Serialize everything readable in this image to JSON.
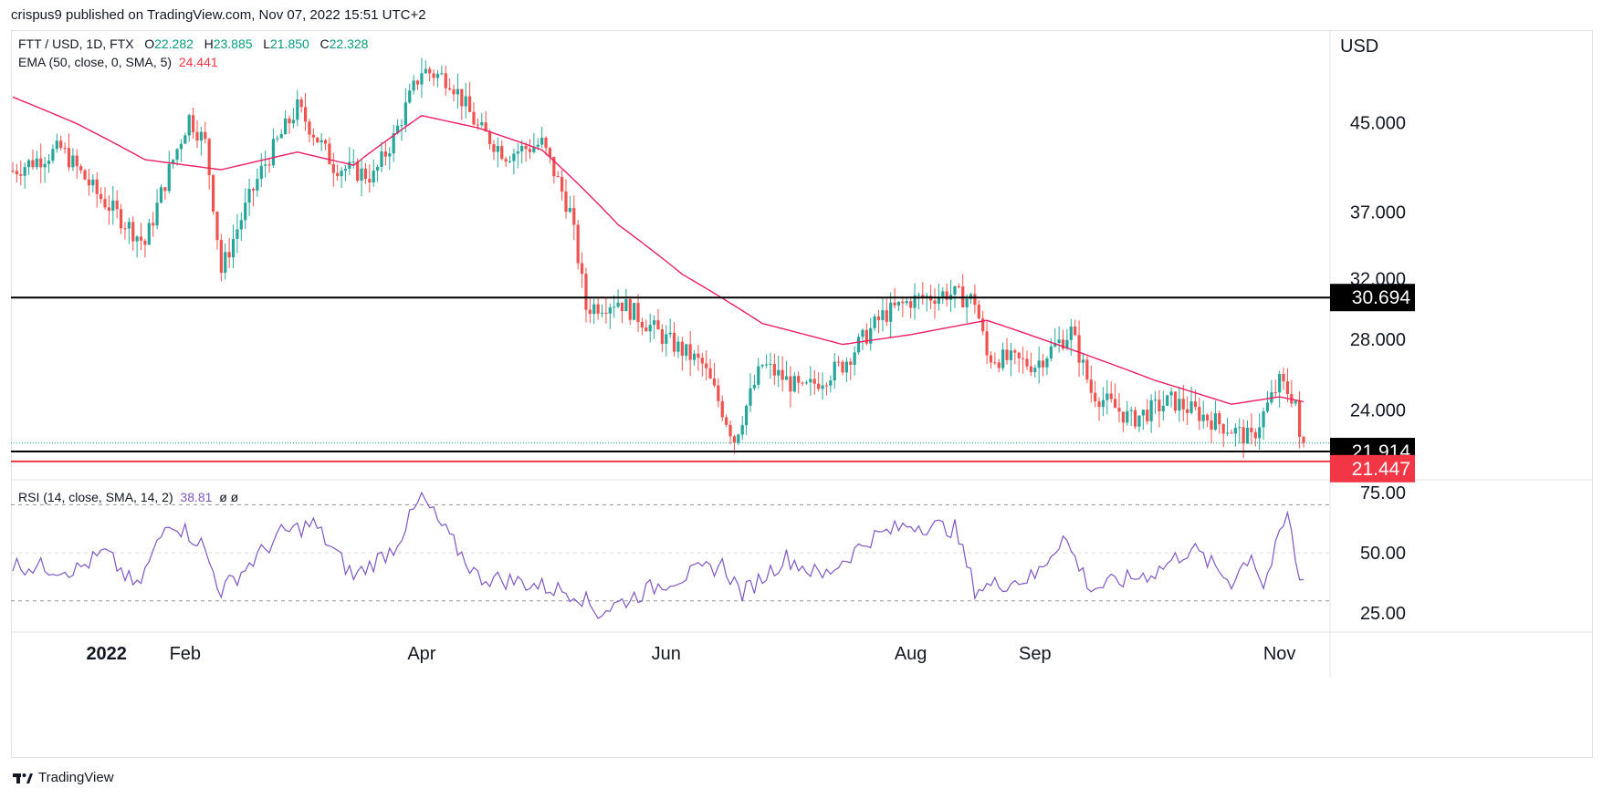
{
  "caption": "crispus9 published on TradingView.com, Nov 07, 2022 15:51 UTC+2",
  "legend": {
    "symbol": "FTT / USD, 1D, FTX",
    "o_label": "O",
    "o_value": "22.282",
    "h_label": "H",
    "h_value": "23.885",
    "l_label": "L",
    "l_value": "21.850",
    "c_label": "C",
    "c_value": "22.328",
    "ema_label": "EMA (50, close, 0, SMA, 5)",
    "ema_value": "24.441",
    "rsi_label": "RSI (14, close, SMA, 14, 2)",
    "rsi_value": "38.81",
    "rsi_extra": "ø ø"
  },
  "footer": {
    "brand": "TradingView",
    "icon": "tradingview-logo-icon"
  },
  "colors": {
    "up": "#26a69a",
    "down": "#ef5350",
    "ema": "#e91e63",
    "rsi": "#7e57c2",
    "level": "#000000",
    "support_red": "#f23645"
  },
  "chart_data": [
    {
      "type": "candlestick",
      "currency": "USD",
      "y_scale": "log",
      "price_ticks": [
        "45.000",
        "37.000",
        "32.000",
        "28.000",
        "24.000"
      ],
      "price_tick_values": [
        45,
        37,
        32,
        28,
        24
      ],
      "ylim": [
        20.6,
        55
      ],
      "x_tick_labels": [
        "2022",
        "Feb",
        "Apr",
        "Jun",
        "Aug",
        "Sep",
        "Nov"
      ],
      "x_tick_dates": [
        "2022-01-01",
        "2022-02-01",
        "2022-04-01",
        "2022-06-01",
        "2022-08-01",
        "2022-09-01",
        "2022-11-01"
      ],
      "date_range": [
        "2021-12-20",
        "2022-11-07"
      ],
      "horizontal_levels": [
        {
          "value": 30.694,
          "label": "30.694",
          "color": "#000000"
        },
        {
          "value": 21.914,
          "label": "21.914",
          "color": "#000000"
        },
        {
          "value": 21.447,
          "label": "21.447",
          "color": "#f23645"
        }
      ],
      "last_close": 22.328,
      "ema_keypoints": [
        {
          "date": "2021-12-20",
          "value": 47.6
        },
        {
          "date": "2022-01-05",
          "value": 44.9
        },
        {
          "date": "2022-01-22",
          "value": 41.5
        },
        {
          "date": "2022-02-10",
          "value": 40.6
        },
        {
          "date": "2022-03-01",
          "value": 42.2
        },
        {
          "date": "2022-03-15",
          "value": 41.0
        },
        {
          "date": "2022-04-01",
          "value": 45.7
        },
        {
          "date": "2022-04-15",
          "value": 44.5
        },
        {
          "date": "2022-05-01",
          "value": 42.4
        },
        {
          "date": "2022-05-20",
          "value": 36.0
        },
        {
          "date": "2022-06-05",
          "value": 32.3
        },
        {
          "date": "2022-06-25",
          "value": 29.0
        },
        {
          "date": "2022-07-15",
          "value": 27.7
        },
        {
          "date": "2022-08-01",
          "value": 28.3
        },
        {
          "date": "2022-08-20",
          "value": 29.2
        },
        {
          "date": "2022-09-10",
          "value": 27.4
        },
        {
          "date": "2022-10-01",
          "value": 25.6
        },
        {
          "date": "2022-10-20",
          "value": 24.3
        },
        {
          "date": "2022-11-01",
          "value": 24.7
        },
        {
          "date": "2022-11-07",
          "value": 24.44
        }
      ],
      "close_keypoints": [
        {
          "date": "2021-12-20",
          "value": 40.5
        },
        {
          "date": "2022-01-01",
          "value": 42.5
        },
        {
          "date": "2022-01-10",
          "value": 38.5
        },
        {
          "date": "2022-01-22",
          "value": 34.5
        },
        {
          "date": "2022-02-02",
          "value": 45.5
        },
        {
          "date": "2022-02-06",
          "value": 43.0
        },
        {
          "date": "2022-02-10",
          "value": 32.5
        },
        {
          "date": "2022-02-20",
          "value": 40.5
        },
        {
          "date": "2022-03-01",
          "value": 46.5
        },
        {
          "date": "2022-03-10",
          "value": 41.0
        },
        {
          "date": "2022-03-20",
          "value": 40.0
        },
        {
          "date": "2022-03-25",
          "value": 43.5
        },
        {
          "date": "2022-04-01",
          "value": 50.5
        },
        {
          "date": "2022-04-08",
          "value": 49.5
        },
        {
          "date": "2022-04-15",
          "value": 44.5
        },
        {
          "date": "2022-04-22",
          "value": 42.0
        },
        {
          "date": "2022-05-01",
          "value": 43.0
        },
        {
          "date": "2022-05-08",
          "value": 37.0
        },
        {
          "date": "2022-05-12",
          "value": 30.0
        },
        {
          "date": "2022-05-20",
          "value": 30.5
        },
        {
          "date": "2022-06-01",
          "value": 28.0
        },
        {
          "date": "2022-06-10",
          "value": 26.5
        },
        {
          "date": "2022-06-18",
          "value": 22.5
        },
        {
          "date": "2022-06-25",
          "value": 26.5
        },
        {
          "date": "2022-07-05",
          "value": 25.0
        },
        {
          "date": "2022-07-15",
          "value": 26.5
        },
        {
          "date": "2022-07-25",
          "value": 29.5
        },
        {
          "date": "2022-08-01",
          "value": 30.5
        },
        {
          "date": "2022-08-10",
          "value": 31.0
        },
        {
          "date": "2022-08-17",
          "value": 30.5
        },
        {
          "date": "2022-08-20",
          "value": 27.0
        },
        {
          "date": "2022-09-01",
          "value": 26.5
        },
        {
          "date": "2022-09-10",
          "value": 28.5
        },
        {
          "date": "2022-09-15",
          "value": 25.0
        },
        {
          "date": "2022-09-25",
          "value": 23.5
        },
        {
          "date": "2022-10-05",
          "value": 24.5
        },
        {
          "date": "2022-10-15",
          "value": 23.5
        },
        {
          "date": "2022-10-25",
          "value": 22.5
        },
        {
          "date": "2022-11-01",
          "value": 25.5
        },
        {
          "date": "2022-11-05",
          "value": 24.5
        },
        {
          "date": "2022-11-06",
          "value": 22.3
        },
        {
          "date": "2022-11-07",
          "value": 22.328
        }
      ]
    },
    {
      "type": "line",
      "title": "RSI (14, close, SMA, 14, 2)",
      "ticks": [
        "75.00",
        "50.00",
        "25.00"
      ],
      "tick_values": [
        75,
        50,
        25
      ],
      "ylim": [
        17,
        80
      ],
      "bands": [
        70,
        50,
        30
      ],
      "last_value": 38.81,
      "keypoints": [
        {
          "date": "2021-12-20",
          "value": 45
        },
        {
          "date": "2022-01-05",
          "value": 43
        },
        {
          "date": "2022-01-12",
          "value": 50
        },
        {
          "date": "2022-01-20",
          "value": 35
        },
        {
          "date": "2022-01-28",
          "value": 64
        },
        {
          "date": "2022-02-05",
          "value": 54
        },
        {
          "date": "2022-02-10",
          "value": 34
        },
        {
          "date": "2022-02-25",
          "value": 58
        },
        {
          "date": "2022-03-05",
          "value": 62
        },
        {
          "date": "2022-03-15",
          "value": 40
        },
        {
          "date": "2022-03-25",
          "value": 52
        },
        {
          "date": "2022-04-01",
          "value": 73
        },
        {
          "date": "2022-04-08",
          "value": 56
        },
        {
          "date": "2022-04-15",
          "value": 40
        },
        {
          "date": "2022-04-25",
          "value": 38
        },
        {
          "date": "2022-05-10",
          "value": 33
        },
        {
          "date": "2022-05-15",
          "value": 25
        },
        {
          "date": "2022-06-01",
          "value": 38
        },
        {
          "date": "2022-06-15",
          "value": 45
        },
        {
          "date": "2022-06-20",
          "value": 33
        },
        {
          "date": "2022-07-01",
          "value": 48
        },
        {
          "date": "2022-07-10",
          "value": 40
        },
        {
          "date": "2022-07-22",
          "value": 56
        },
        {
          "date": "2022-08-01",
          "value": 62
        },
        {
          "date": "2022-08-12",
          "value": 60
        },
        {
          "date": "2022-08-17",
          "value": 35
        },
        {
          "date": "2022-09-01",
          "value": 40
        },
        {
          "date": "2022-09-08",
          "value": 57
        },
        {
          "date": "2022-09-15",
          "value": 35
        },
        {
          "date": "2022-10-01",
          "value": 42
        },
        {
          "date": "2022-10-10",
          "value": 52
        },
        {
          "date": "2022-10-20",
          "value": 38
        },
        {
          "date": "2022-10-25",
          "value": 50
        },
        {
          "date": "2022-10-28",
          "value": 36
        },
        {
          "date": "2022-11-03",
          "value": 66
        },
        {
          "date": "2022-11-05",
          "value": 48
        },
        {
          "date": "2022-11-06",
          "value": 38
        },
        {
          "date": "2022-11-07",
          "value": 38.81
        }
      ]
    }
  ]
}
